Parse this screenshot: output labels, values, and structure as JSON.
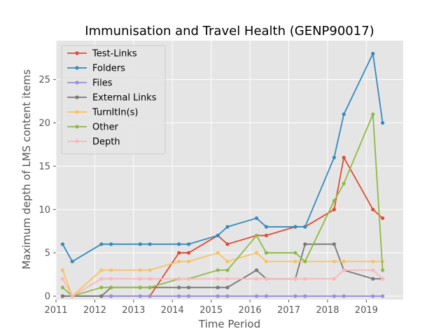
{
  "chart_data": {
    "type": "line",
    "title": "Immunisation and Travel Health (GENP90017)",
    "xlabel": "Time Period",
    "ylabel": "Maximum depth of LMS content items",
    "xlim": [
      2011.0,
      2019.95
    ],
    "ylim": [
      -0.4,
      29.5
    ],
    "x_ticks": [
      2011,
      2012,
      2013,
      2014,
      2015,
      2016,
      2017,
      2018,
      2019
    ],
    "x_tick_labels": [
      "2011",
      "2012",
      "2013",
      "2014",
      "2015",
      "2016",
      "2017",
      "2018",
      "2019"
    ],
    "y_ticks": [
      0,
      5,
      10,
      15,
      20,
      25
    ],
    "y_tick_labels": [
      "0",
      "5",
      "10",
      "15",
      "20",
      "25"
    ],
    "grid": true,
    "legend_position": "upper-left",
    "x": [
      2011.17,
      2011.42,
      2012.17,
      2012.42,
      2013.17,
      2013.42,
      2014.17,
      2014.42,
      2015.17,
      2015.42,
      2016.17,
      2016.42,
      2017.17,
      2017.42,
      2018.17,
      2018.42,
      2019.17,
      2019.42
    ],
    "series": [
      {
        "name": "Test-Links",
        "color": "#E24A33",
        "values": [
          0,
          0,
          0,
          0,
          0,
          0,
          5,
          5,
          7,
          6,
          7,
          7,
          8,
          8,
          10,
          16,
          10,
          9
        ]
      },
      {
        "name": "Folders",
        "color": "#348ABD",
        "values": [
          6,
          4,
          6,
          6,
          6,
          6,
          6,
          6,
          7,
          8,
          9,
          8,
          8,
          8,
          16,
          21,
          28,
          20
        ]
      },
      {
        "name": "Files",
        "color": "#988ED5",
        "values": [
          0,
          0,
          0,
          0,
          0,
          0,
          0,
          0,
          0,
          0,
          0,
          0,
          0,
          0,
          0,
          0,
          0,
          0
        ]
      },
      {
        "name": "External Links",
        "color": "#777777",
        "values": [
          0,
          0,
          0,
          1,
          1,
          1,
          1,
          1,
          1,
          1,
          3,
          2,
          2,
          6,
          6,
          3,
          2,
          2
        ]
      },
      {
        "name": "TurnItIn(s)",
        "color": "#FBC15E",
        "values": [
          3,
          0,
          3,
          3,
          3,
          3,
          4,
          4,
          5,
          4,
          5,
          4,
          4,
          4,
          4,
          4,
          4,
          4
        ]
      },
      {
        "name": "Other",
        "color": "#8EBA42",
        "values": [
          1,
          0,
          1,
          1,
          1,
          1,
          2,
          2,
          3,
          3,
          7,
          5,
          5,
          4,
          11,
          13,
          21,
          3
        ]
      },
      {
        "name": "Depth",
        "color": "#FFB5B8",
        "values": [
          2,
          0,
          2,
          2,
          2,
          2,
          2,
          2,
          2,
          2,
          2,
          2,
          2,
          2,
          2,
          3,
          3,
          2
        ]
      }
    ]
  }
}
